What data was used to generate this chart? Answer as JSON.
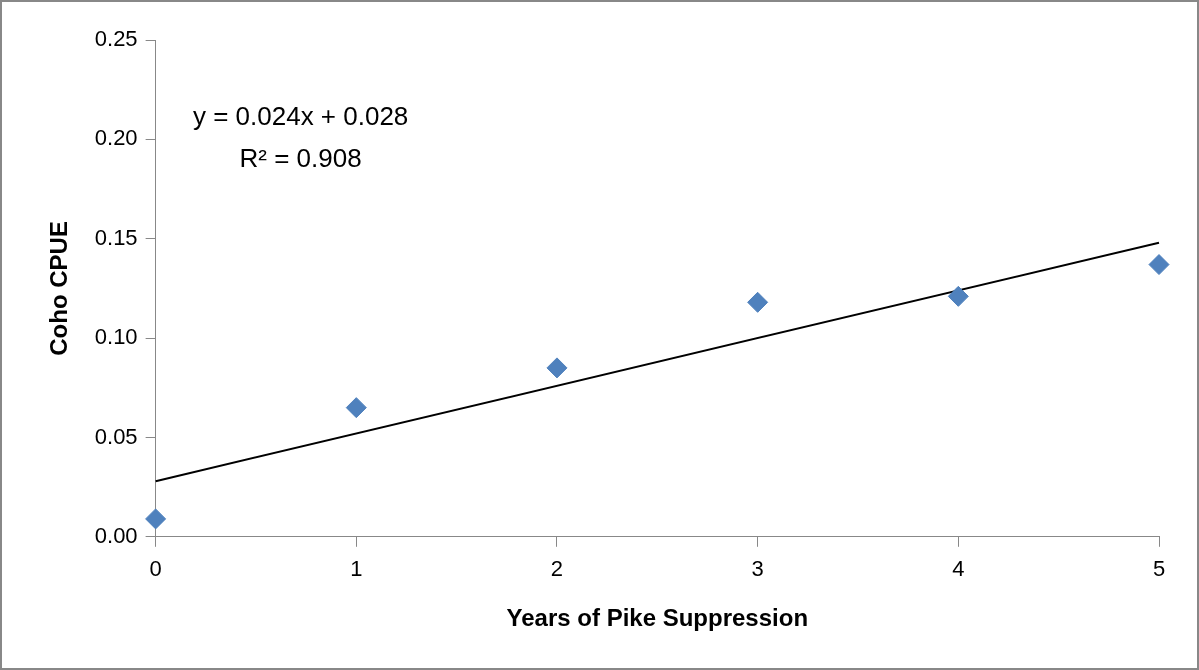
{
  "chart_data": {
    "type": "scatter",
    "xlabel": "Years of Pike Suppression",
    "ylabel": "Coho CPUE",
    "x": [
      0,
      1,
      2,
      3,
      4,
      5
    ],
    "series": [
      {
        "type": "scatter",
        "color": "#4f81bd",
        "values": [
          0.009,
          0.065,
          0.085,
          0.118,
          0.121,
          0.137
        ],
        "marker": "diamond"
      },
      {
        "type": "line",
        "color": "#000000",
        "x": [
          0,
          5
        ],
        "values": [
          0.028,
          0.148
        ],
        "marker": "none"
      }
    ],
    "xlim": [
      0,
      5
    ],
    "xticks": [
      0,
      1,
      2,
      3,
      4,
      5
    ],
    "ylim": [
      0,
      0.25
    ],
    "yticks": [
      {
        "value": 0,
        "label": "0.00"
      },
      {
        "value": 0.05,
        "label": "0.05"
      },
      {
        "value": 0.1,
        "label": "0.10"
      },
      {
        "value": 0.15,
        "label": "0.15"
      },
      {
        "value": 0.2,
        "label": "0.20"
      },
      {
        "value": 0.25,
        "label": "0.25"
      }
    ],
    "annotations": [
      "y = 0.024x + 0.028",
      "R² = 0.908"
    ],
    "grid": false,
    "legend": false
  }
}
